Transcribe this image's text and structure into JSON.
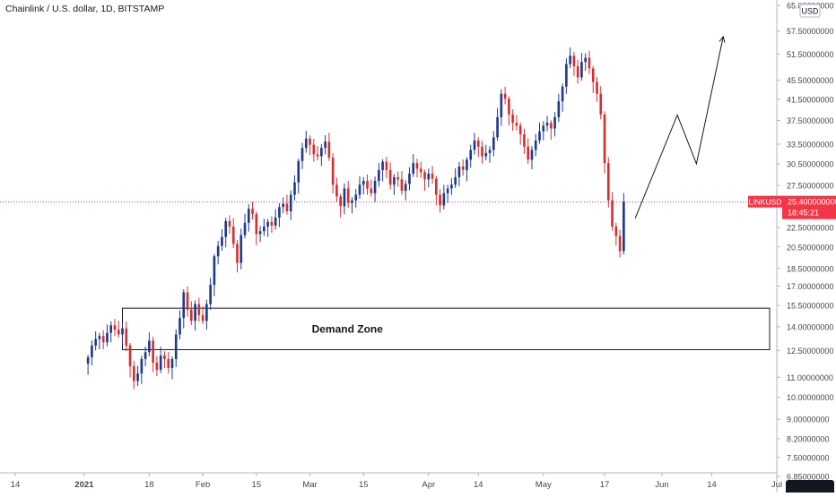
{
  "header": {
    "title": "Chainlink / U.S. dollar, 1D, BITSTAMP",
    "currency_badge": "USD"
  },
  "price_badge": {
    "symbol": "LINKUSD",
    "price": "25.400000000",
    "countdown": "18:45:21"
  },
  "annotation": {
    "zone_label": "Demand Zone"
  },
  "colors": {
    "up": "#1e3a8a",
    "down": "#d32f2f",
    "badge": "#f23645",
    "text": "#131722",
    "axis_text": "#434651"
  },
  "chart_data": {
    "type": "candlestick",
    "scale": "log",
    "grid": false,
    "y_axis_position": "right",
    "y_ticks": [
      {
        "value": 65.0,
        "label": "65.00000000"
      },
      {
        "value": 57.5,
        "label": "57.50000000"
      },
      {
        "value": 51.5,
        "label": "51.50000000"
      },
      {
        "value": 45.5,
        "label": "45.50000000"
      },
      {
        "value": 41.5,
        "label": "41.50000000"
      },
      {
        "value": 37.5,
        "label": "37.50000000"
      },
      {
        "value": 33.5,
        "label": "33.50000000"
      },
      {
        "value": 30.5,
        "label": "30.50000000"
      },
      {
        "value": 27.5,
        "label": "27.50000000"
      },
      {
        "value": 22.5,
        "label": "22.50000000"
      },
      {
        "value": 20.5,
        "label": "20.50000000"
      },
      {
        "value": 18.5,
        "label": "18.50000000"
      },
      {
        "value": 17.0,
        "label": "17.00000000"
      },
      {
        "value": 15.5,
        "label": "15.50000000"
      },
      {
        "value": 14.0,
        "label": "14.00000000"
      },
      {
        "value": 12.5,
        "label": "12.50000000"
      },
      {
        "value": 11.0,
        "label": "11.00000000"
      },
      {
        "value": 10.0,
        "label": "10.00000000"
      },
      {
        "value": 9.0,
        "label": "9.00000000"
      },
      {
        "value": 8.2,
        "label": "8.20000000"
      },
      {
        "value": 7.5,
        "label": "7.50000000"
      },
      {
        "value": 6.85,
        "label": "6.85000000"
      }
    ],
    "x_ticks": [
      {
        "date": "2020-12-14",
        "label": "14"
      },
      {
        "date": "2021-01-01",
        "label": "2021"
      },
      {
        "date": "2021-01-18",
        "label": "18"
      },
      {
        "date": "2021-02-01",
        "label": "Feb"
      },
      {
        "date": "2021-02-15",
        "label": "15"
      },
      {
        "date": "2021-03-01",
        "label": "Mar"
      },
      {
        "date": "2021-03-15",
        "label": "15"
      },
      {
        "date": "2021-04-01",
        "label": "Apr"
      },
      {
        "date": "2021-04-14",
        "label": "14"
      },
      {
        "date": "2021-05-01",
        "label": "May"
      },
      {
        "date": "2021-05-17",
        "label": "17"
      },
      {
        "date": "2021-06-01",
        "label": "Jun"
      },
      {
        "date": "2021-06-14",
        "label": "14"
      },
      {
        "date": "2021-07-01",
        "label": "Jul"
      }
    ],
    "x_range": [
      "2020-12-10",
      "2021-07-01"
    ],
    "current_price": 25.4,
    "demand_zone": {
      "start": "2021-01-11",
      "end": "2021-07-01",
      "high": 15.3,
      "low": 12.55
    },
    "projection_path": [
      {
        "date": "2021-05-25",
        "price": 23.5
      },
      {
        "date": "2021-06-05",
        "price": 38.5
      },
      {
        "date": "2021-06-10",
        "price": 30.5
      },
      {
        "date": "2021-06-17",
        "price": 56.0
      }
    ],
    "closes": [
      12.1,
      12.8,
      13.2,
      13.4,
      13.0,
      13.6,
      14.1,
      13.8,
      13.5,
      13.9,
      12.8,
      11.6,
      10.8,
      11.2,
      12.0,
      12.4,
      13.1,
      11.8,
      11.4,
      12.2,
      12.0,
      11.5,
      12.0,
      13.5,
      14.6,
      16.5,
      15.2,
      14.4,
      15.6,
      14.8,
      14.4,
      15.6,
      17.1,
      19.6,
      20.6,
      21.5,
      23.2,
      22.6,
      20.8,
      19.0,
      21.7,
      23.0,
      24.6,
      24.0,
      21.8,
      22.1,
      22.6,
      23.1,
      22.7,
      23.6,
      24.8,
      25.2,
      24.3,
      26.3,
      27.9,
      30.9,
      32.9,
      34.4,
      33.4,
      31.9,
      31.6,
      32.9,
      33.9,
      31.4,
      27.6,
      26.1,
      24.9,
      27.1,
      25.3,
      25.6,
      26.3,
      27.6,
      28.1,
      27.1,
      26.5,
      28.1,
      29.6,
      30.8,
      29.6,
      27.6,
      28.6,
      28.3,
      26.8,
      27.7,
      29.1,
      30.6,
      29.8,
      29.3,
      28.3,
      29.1,
      28.4,
      26.3,
      25.0,
      26.5,
      27.1,
      27.6,
      28.6,
      30.1,
      29.6,
      31.1,
      32.6,
      34.1,
      33.1,
      31.6,
      32.1,
      32.6,
      34.6,
      38.1,
      42.6,
      41.6,
      38.6,
      37.1,
      36.6,
      35.1,
      33.1,
      31.1,
      32.6,
      34.1,
      35.6,
      36.6,
      37.1,
      36.1,
      38.1,
      41.1,
      44.1,
      49.1,
      51.1,
      48.6,
      46.1,
      49.6,
      50.6,
      48.1,
      45.1,
      42.6,
      38.6,
      30.6,
      25.6,
      22.6,
      21.6,
      20.1,
      25.4
    ],
    "last_close_date": "2021-05-22"
  }
}
